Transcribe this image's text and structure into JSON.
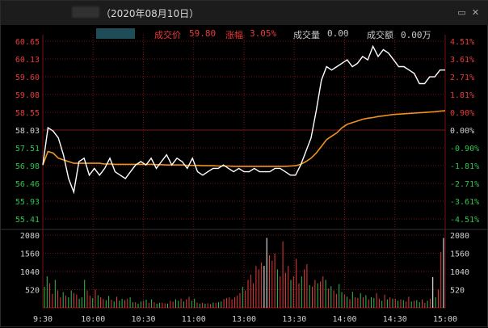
{
  "window": {
    "title": "（2020年08月10日）",
    "buttons": {
      "restore": "▭",
      "close": "✕"
    }
  },
  "info": {
    "price_label": "成交价",
    "price_value": "59.80",
    "change_label": "涨幅",
    "change_value": "3.05%",
    "volume_label": "成交量",
    "volume_value": "0.00",
    "amount_label": "成交额",
    "amount_value": "0.00万"
  },
  "colors": {
    "up": "#e83a3a",
    "down": "#2ec24a",
    "neutral": "#d0d0d0",
    "price_line": "#ffffff",
    "avg_line": "#f0921e",
    "grid": "#7a1010"
  },
  "chart_data": [
    {
      "type": "line",
      "title": "",
      "x_ticks": [
        "9:30",
        "10:00",
        "10:30",
        "11:00",
        "11:30/13:00",
        "13:30",
        "14:00",
        "14:30",
        "15:00"
      ],
      "y_left_ticks": [
        "60.65",
        "60.13",
        "59.60",
        "59.08",
        "58.55",
        "58.03",
        "57.51",
        "56.98",
        "56.46",
        "55.93",
        "55.41"
      ],
      "y_right_ticks": [
        "4.51%",
        "3.61%",
        "2.71%",
        "1.81%",
        "0.90%",
        "0.00%",
        "-0.90%",
        "-1.81%",
        "-2.71%",
        "-3.61%",
        "-4.51%"
      ],
      "prev_close": 58.03,
      "ylim": [
        55.41,
        60.65
      ],
      "series": [
        {
          "values": [
            57.0,
            58.1,
            58.0,
            57.8,
            57.3,
            56.6,
            56.2,
            57.1,
            57.2,
            56.7,
            56.9,
            56.7,
            56.9,
            57.2,
            56.8,
            56.7,
            56.6,
            56.8,
            57.0,
            57.1,
            57.0,
            57.2,
            56.9,
            57.1,
            57.3,
            57.0,
            57.2,
            57.1,
            56.9,
            57.2,
            56.8,
            56.7,
            56.8,
            56.9,
            56.9,
            57.0,
            56.9,
            56.8,
            56.9,
            56.8,
            56.8,
            56.9,
            56.8,
            56.8,
            56.8,
            56.9,
            56.9,
            56.8,
            56.7,
            56.7,
            57.0,
            57.4,
            57.8,
            58.6,
            59.5,
            59.9,
            59.8,
            59.9,
            60.0,
            60.1,
            59.9,
            60.0,
            60.2,
            60.1,
            60.5,
            60.2,
            60.4,
            60.3,
            60.1,
            59.9,
            59.9,
            59.8,
            59.7,
            59.4,
            59.4,
            59.6,
            59.6,
            59.8,
            59.8
          ]
        },
        {
          "values": [
            57.0,
            57.4,
            57.35,
            57.2,
            57.15,
            57.1,
            57.05,
            57.05,
            57.05,
            57.05,
            57.05,
            57.05,
            57.03,
            57.03,
            57.02,
            57.02,
            57.02,
            57.02,
            57.02,
            57.02,
            57.02,
            57.02,
            57.01,
            57.01,
            57.0,
            57.0,
            57.0,
            57.0,
            56.99,
            56.99,
            56.99,
            56.98,
            56.98,
            56.98,
            56.97,
            56.97,
            56.97,
            56.96,
            56.96,
            56.96,
            56.96,
            56.96,
            56.96,
            56.96,
            56.96,
            56.96,
            56.96,
            56.96,
            56.97,
            56.98,
            57.02,
            57.1,
            57.2,
            57.35,
            57.55,
            57.75,
            57.85,
            57.95,
            58.1,
            58.2,
            58.25,
            58.3,
            58.35,
            58.38,
            58.4,
            58.43,
            58.45,
            58.47,
            58.49,
            58.5,
            58.51,
            58.52,
            58.53,
            58.54,
            58.55,
            58.56,
            58.57,
            58.59,
            58.6
          ]
        }
      ]
    },
    {
      "type": "bar",
      "title": "",
      "y_ticks": [
        "2080",
        "1560",
        "1040",
        "520"
      ],
      "ylim": [
        0,
        2080
      ],
      "values": [
        600,
        900,
        700,
        400,
        800,
        500,
        300,
        450,
        350,
        300,
        500,
        420,
        380,
        260,
        300,
        800,
        500,
        350,
        280,
        520,
        360,
        300,
        250,
        220,
        340,
        230,
        180,
        320,
        200,
        260,
        220,
        260,
        300,
        160,
        160,
        120,
        180,
        200,
        230,
        140,
        240,
        160,
        120,
        140,
        150,
        130,
        120,
        200,
        180,
        240,
        200,
        260,
        180,
        240,
        320,
        200,
        260,
        150,
        120,
        140,
        120,
        130,
        110,
        150,
        140,
        160,
        180,
        250,
        280,
        300,
        240,
        300,
        350,
        420,
        600,
        500,
        800,
        950,
        700,
        1200,
        1100,
        1300,
        1200,
        2000,
        1500,
        1350,
        1550,
        1100,
        900,
        1900,
        1000,
        1200,
        800,
        900,
        1400,
        700,
        900,
        1100,
        1250,
        650,
        600,
        800,
        700,
        750,
        900,
        800,
        550,
        620,
        500,
        400,
        680,
        450,
        380,
        320,
        250,
        460,
        300,
        280,
        420,
        300,
        360,
        240,
        300,
        280,
        420,
        260,
        200,
        380,
        240,
        300,
        260,
        260,
        200,
        240,
        220,
        180,
        320,
        180,
        200,
        220,
        160,
        240,
        140,
        200,
        260,
        880,
        300,
        520,
        1600,
        2000
      ],
      "colors": [
        "d",
        "d",
        "u",
        "u",
        "d",
        "u",
        "u",
        "d",
        "u",
        "d",
        "d",
        "u",
        "u",
        "d",
        "d",
        "d",
        "u",
        "u",
        "d",
        "u",
        "d",
        "u",
        "u",
        "d",
        "d",
        "u",
        "d",
        "u",
        "d",
        "d",
        "u",
        "u",
        "d",
        "d",
        "u",
        "d",
        "d",
        "u",
        "d",
        "u",
        "d",
        "u",
        "d",
        "d",
        "u",
        "u",
        "d",
        "u",
        "u",
        "d",
        "d",
        "u",
        "d",
        "u",
        "u",
        "d",
        "d",
        "u",
        "d",
        "u",
        "d",
        "u",
        "u",
        "d",
        "u",
        "d",
        "d",
        "u",
        "u",
        "u",
        "u",
        "u",
        "u",
        "u",
        "d",
        "u",
        "u",
        "u",
        "u",
        "u",
        "u",
        "u",
        "w",
        "w",
        "u",
        "u",
        "u",
        "d",
        "u",
        "u",
        "u",
        "u",
        "d",
        "u",
        "u",
        "u",
        "d",
        "u",
        "u",
        "d",
        "u",
        "u",
        "d",
        "u",
        "u",
        "d",
        "u",
        "d",
        "u",
        "u",
        "d",
        "d",
        "u",
        "d",
        "u",
        "d",
        "u",
        "u",
        "d",
        "u",
        "d",
        "u",
        "d",
        "d",
        "u",
        "u",
        "d",
        "u",
        "d",
        "u",
        "d",
        "u",
        "d",
        "u",
        "d",
        "u",
        "u",
        "d",
        "u",
        "d",
        "d",
        "u",
        "u",
        "d",
        "u",
        "w",
        "d",
        "u",
        "u",
        "w"
      ]
    }
  ]
}
